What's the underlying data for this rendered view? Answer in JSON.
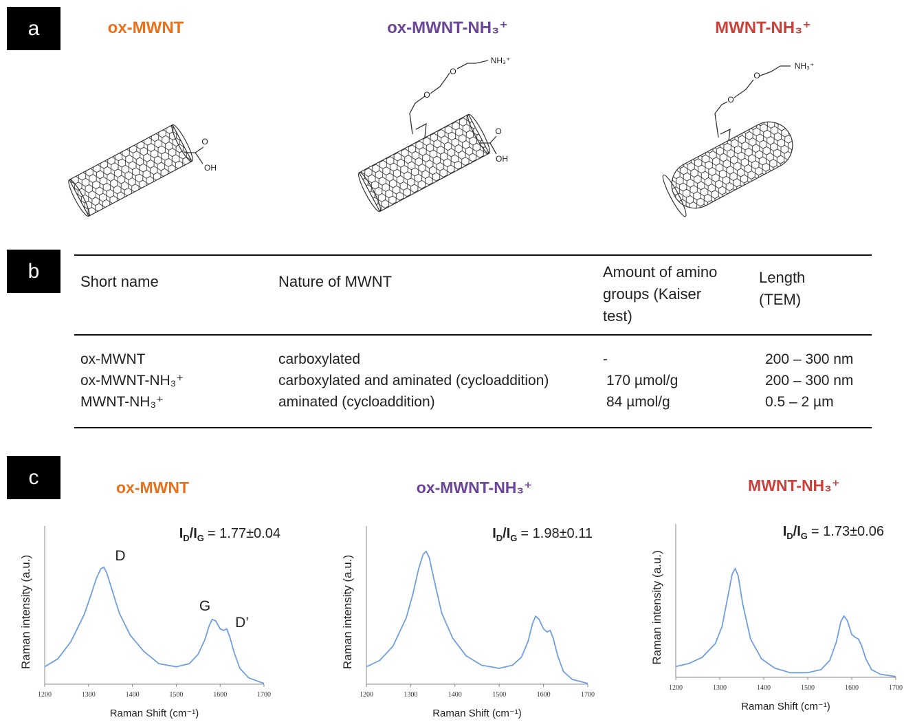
{
  "panel_labels": [
    "a",
    "b",
    "c"
  ],
  "structures": [
    {
      "name": "ox-MWNT",
      "color": "#e8711c",
      "atoms": [
        "O",
        "OH"
      ]
    },
    {
      "name": "ox-MWNT-NH₃⁺",
      "color": "#6b4597",
      "atoms": [
        "O",
        "O",
        "NH₃⁺",
        "O",
        "OH"
      ]
    },
    {
      "name": "MWNT-NH₃⁺",
      "color": "#c9413a",
      "atoms": [
        "O",
        "O",
        "NH₃⁺"
      ]
    }
  ],
  "table": {
    "header": [
      "Short name",
      "Nature of MWNT",
      "Amount of amino groups (Kaiser test)",
      "Length (TEM)"
    ],
    "rows": [
      [
        "ox-MWNT",
        "carboxylated",
        "-",
        "200 – 300 nm"
      ],
      [
        "ox-MWNT-NH₃⁺",
        "carboxylated and aminated (cycloaddition)",
        "170 µmol/g",
        "200 – 300 nm"
      ],
      [
        "MWNT-NH₃⁺",
        "aminated (cycloaddition)",
        "84 µmol/g",
        "0.5 – 2 µm"
      ]
    ]
  },
  "chart_data": [
    {
      "type": "line",
      "title": "ox-MWNT",
      "title_color": "#e8711c",
      "annotation": [
        "I",
        "D",
        "/I",
        "G",
        "= 1.77±0.04"
      ],
      "peak_labels": [
        "D",
        "G",
        "D’"
      ],
      "xlabel": "Raman Shift (cm⁻¹)",
      "ylabel": "Raman intensity (a.u.)",
      "xlim": [
        1200,
        1700
      ],
      "xticks": [
        1200,
        1300,
        1400,
        1500,
        1600,
        1700
      ],
      "ylim": [
        0,
        100
      ],
      "x": [
        1200,
        1230,
        1260,
        1290,
        1305,
        1318,
        1328,
        1335,
        1342,
        1352,
        1370,
        1395,
        1425,
        1460,
        1500,
        1530,
        1550,
        1565,
        1575,
        1582,
        1590,
        1600,
        1608,
        1615,
        1622,
        1632,
        1645,
        1665,
        1700
      ],
      "series": [
        {
          "color": "#6f9fe0",
          "values": [
            11,
            16,
            27,
            44,
            56,
            67,
            73,
            74,
            70,
            61,
            45,
            31,
            21,
            13,
            11,
            13,
            19,
            28,
            37,
            41,
            40,
            35,
            34,
            35,
            30,
            20,
            10,
            4,
            0.5
          ]
        }
      ]
    },
    {
      "type": "line",
      "title": "ox-MWNT-NH₃⁺",
      "title_color": "#6b4597",
      "annotation": [
        "I",
        "D",
        "/I",
        "G",
        "= 1.98±0.11"
      ],
      "xlabel": "Raman Shift (cm⁻¹)",
      "ylabel": "Raman intensity (a.u.)",
      "xlim": [
        1200,
        1700
      ],
      "xticks": [
        1200,
        1300,
        1400,
        1500,
        1600,
        1700
      ],
      "ylim": [
        0,
        100
      ],
      "x": [
        1200,
        1230,
        1260,
        1290,
        1305,
        1318,
        1328,
        1335,
        1342,
        1352,
        1370,
        1395,
        1425,
        1460,
        1500,
        1530,
        1550,
        1565,
        1575,
        1582,
        1590,
        1600,
        1608,
        1615,
        1622,
        1632,
        1645,
        1665,
        1700
      ],
      "series": [
        {
          "color": "#6f9fe0",
          "values": [
            11,
            15,
            24,
            42,
            57,
            73,
            82,
            84,
            80,
            67,
            45,
            29,
            18,
            12,
            10,
            12,
            17,
            27,
            38,
            43,
            41,
            35,
            33,
            34,
            29,
            18,
            8,
            3,
            0.5
          ]
        }
      ]
    },
    {
      "type": "line",
      "title": "MWNT-NH₃⁺",
      "title_color": "#c9413a",
      "annotation": [
        "I",
        "D",
        "/I",
        "G",
        "= 1.73±0.06"
      ],
      "xlabel": "Raman Shift (cm⁻¹)",
      "ylabel": "Raman intensity (a.u.)",
      "xlim": [
        1200,
        1700
      ],
      "xticks": [
        1200,
        1300,
        1400,
        1500,
        1600,
        1700
      ],
      "ylim": [
        0,
        100
      ],
      "x": [
        1200,
        1230,
        1260,
        1290,
        1305,
        1318,
        1328,
        1335,
        1342,
        1352,
        1370,
        1395,
        1425,
        1460,
        1500,
        1530,
        1550,
        1565,
        1575,
        1582,
        1590,
        1600,
        1608,
        1615,
        1622,
        1632,
        1645,
        1665,
        1700
      ],
      "series": [
        {
          "color": "#6f9fe0",
          "values": [
            7,
            9,
            13,
            22,
            33,
            52,
            67,
            71,
            66,
            48,
            25,
            12,
            6,
            3,
            3,
            5,
            11,
            23,
            36,
            40,
            37,
            28,
            26,
            25,
            21,
            12,
            5,
            2,
            0.5
          ]
        }
      ]
    }
  ]
}
